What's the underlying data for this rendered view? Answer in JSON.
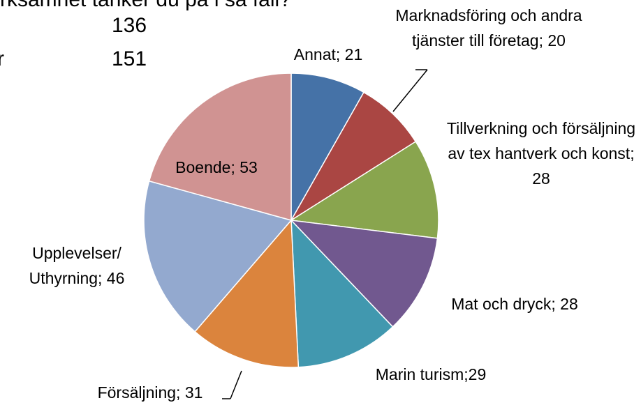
{
  "chart_data": {
    "type": "pie",
    "title": "rksamhet tänker du på i så fall?",
    "annotations": [
      "r",
      "136",
      "151"
    ],
    "values": [
      21,
      20,
      28,
      28,
      29,
      31,
      46,
      53
    ],
    "value_labels": [
      "Annat; 21",
      "Marknadsföring och andra tjänster till företag; 20",
      "Tillverkning och försäljning av tex hantverk och konst; 28",
      "Mat och dryck; 28",
      "Marin turism;29",
      "Försäljning; 31",
      "Upplevelser/ Uthyrning; 46",
      "Boende; 53"
    ],
    "colors": [
      "#4572a7",
      "#aa4643",
      "#89a54e",
      "#71588f",
      "#4198af",
      "#db843d",
      "#93a9cf",
      "#d09392"
    ]
  }
}
